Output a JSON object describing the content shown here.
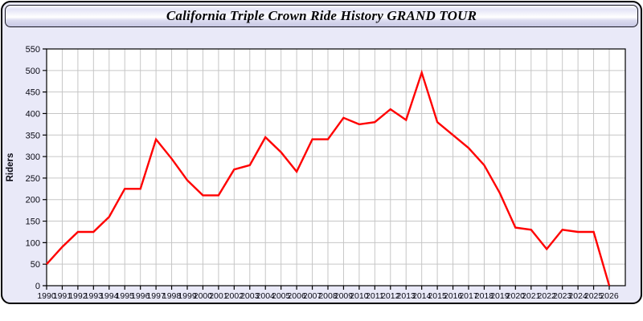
{
  "window": {
    "title": "California Triple Crown Ride History GRAND TOUR"
  },
  "chart_data": {
    "type": "line",
    "title": "California Triple Crown Ride History GRAND TOUR",
    "xlabel": "",
    "ylabel": "Riders",
    "categories": [
      "1990",
      "1991",
      "1992",
      "1993",
      "1994",
      "1995",
      "1996",
      "1997",
      "1998",
      "1999",
      "2000",
      "2001",
      "2002",
      "2003",
      "2004",
      "2005",
      "2006",
      "2007",
      "2008",
      "2009",
      "2010",
      "2011",
      "2012",
      "2013",
      "2014",
      "2015",
      "2016",
      "2017",
      "2018",
      "2019",
      "2020",
      "2021",
      "2022",
      "2023",
      "2024",
      "2025",
      "2026"
    ],
    "values": [
      50,
      90,
      125,
      125,
      160,
      225,
      225,
      340,
      295,
      245,
      210,
      210,
      270,
      280,
      345,
      310,
      265,
      340,
      340,
      390,
      375,
      380,
      410,
      385,
      495,
      380,
      350,
      320,
      280,
      215,
      135,
      130,
      85,
      130,
      125,
      125,
      0
    ],
    "ylim": [
      0,
      550
    ],
    "ytick_step": 50,
    "grid": true,
    "legend_position": "none",
    "line_color": "#ff0000",
    "plot_bg": "#ffffff",
    "panel_bg": "#e9e9f8",
    "grid_color": "#c6c6c6",
    "axis_color": "#000000",
    "tick_label_color": "#0a0a14"
  }
}
